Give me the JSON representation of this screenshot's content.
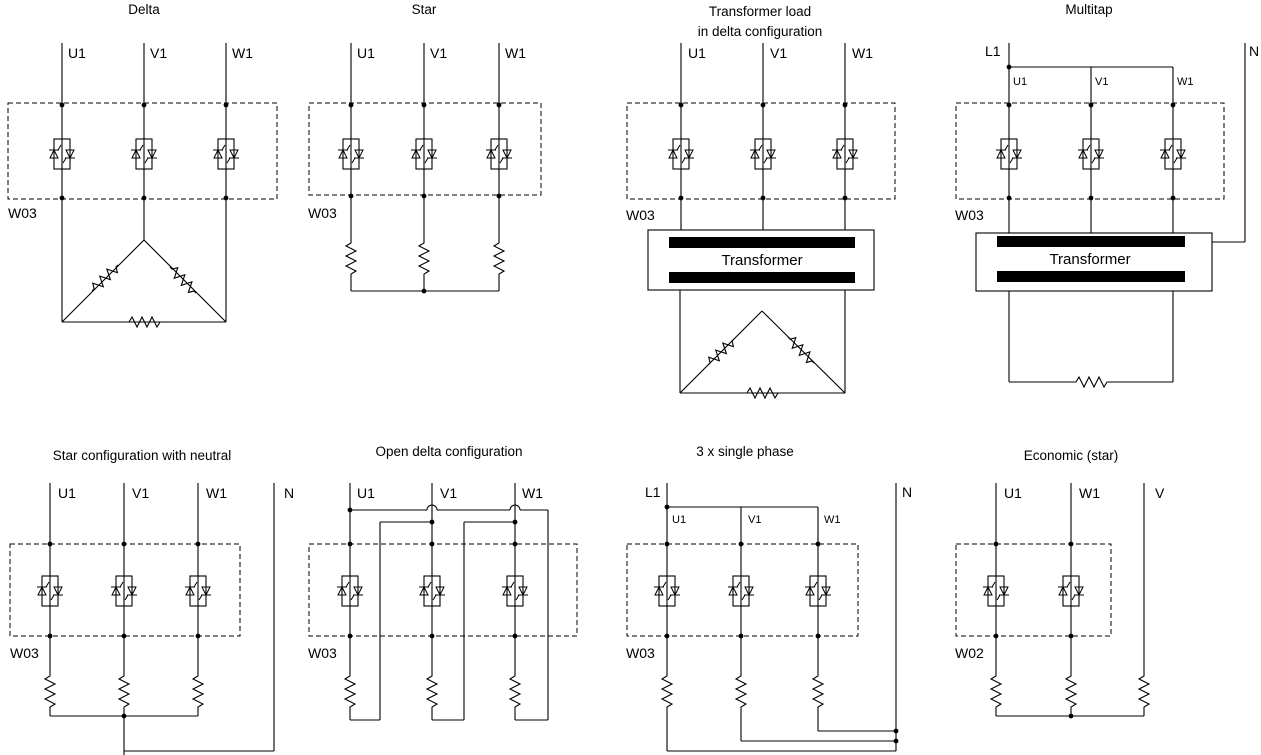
{
  "diagrams": [
    {
      "title": "Delta",
      "phases": [
        "U1",
        "V1",
        "W1"
      ],
      "unit": "W03"
    },
    {
      "title": "Star",
      "phases": [
        "U1",
        "V1",
        "W1"
      ],
      "unit": "W03"
    },
    {
      "title": [
        "Transformer  load",
        "in delta configuration"
      ],
      "phases": [
        "U1",
        "V1",
        "W1"
      ],
      "unit": "W03",
      "transformer": "Transformer"
    },
    {
      "title": "Multitap",
      "supply": "L1",
      "neutral": "N",
      "taps": [
        "U1",
        "V1",
        "W1"
      ],
      "unit": "W03",
      "transformer": "Transformer"
    },
    {
      "title": "Star configuration with neutral",
      "phases": [
        "U1",
        "V1",
        "W1"
      ],
      "neutral": "N",
      "unit": "W03"
    },
    {
      "title": "Open delta configuration",
      "phases": [
        "U1",
        "V1",
        "W1"
      ],
      "unit": "W03"
    },
    {
      "title": "3 x single phase",
      "supply": "L1",
      "neutral": "N",
      "taps": [
        "U1",
        "V1",
        "W1"
      ],
      "unit": "W03"
    },
    {
      "title": "Economic (star)",
      "phases": [
        "U1",
        "W1",
        "V"
      ],
      "unit": "W02"
    }
  ]
}
